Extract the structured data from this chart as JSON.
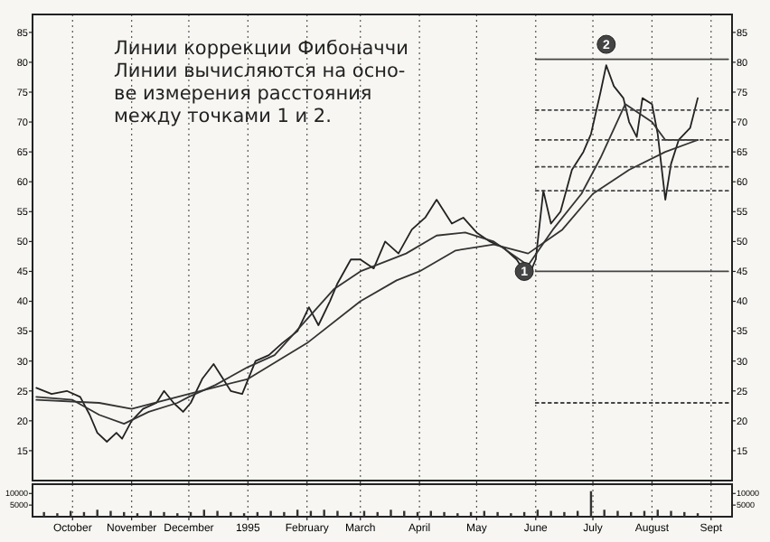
{
  "chart_data": [
    {
      "type": "line",
      "xlim": [
        "1994-09-10",
        "1995-09-12"
      ],
      "ylim": [
        10,
        88
      ],
      "xticks": [
        {
          "value": "1994-10-01",
          "label": null
        },
        {
          "value": "1994-11-01",
          "label": null
        },
        {
          "value": "1994-12-01",
          "label": null
        },
        {
          "value": "1995-01-01",
          "label": null
        },
        {
          "value": "1995-02-01",
          "label": null
        },
        {
          "value": "1995-03-01",
          "label": null
        },
        {
          "value": "1995-04-01",
          "label": null
        },
        {
          "value": "1995-05-01",
          "label": null
        },
        {
          "value": "1995-06-01",
          "label": null
        },
        {
          "value": "1995-07-01",
          "label": null
        },
        {
          "value": "1995-08-01",
          "label": null
        },
        {
          "value": "1995-09-01",
          "label": null
        }
      ],
      "yticks": [
        15,
        20,
        25,
        30,
        35,
        40,
        45,
        50,
        55,
        60,
        65,
        70,
        75,
        80,
        85
      ],
      "y2lim": [
        10,
        88
      ],
      "y2ticks": [
        15,
        20,
        25,
        30,
        35,
        40,
        45,
        50,
        55,
        60,
        65,
        70,
        75,
        80,
        85
      ],
      "tick_labels": "y",
      "grid": "x",
      "series": [
        {
          "color": "#222222",
          "line_style": "solid",
          "x": [
            "1994-09-12",
            "1994-09-20",
            "1994-09-28",
            "1994-10-05",
            "1994-10-10",
            "1994-10-14",
            "1994-10-19",
            "1994-10-24",
            "1994-10-27",
            "1994-11-01",
            "1994-11-07",
            "1994-11-14",
            "1994-11-18",
            "1994-11-23",
            "1994-11-28",
            "1994-12-02",
            "1994-12-08",
            "1994-12-14",
            "1994-12-19",
            "1994-12-23",
            "1994-12-29",
            "1995-01-05",
            "1995-01-12",
            "1995-01-19",
            "1995-01-27",
            "1995-02-02",
            "1995-02-07",
            "1995-02-13",
            "1995-02-17",
            "1995-02-24",
            "1995-03-01",
            "1995-03-08",
            "1995-03-14",
            "1995-03-21",
            "1995-03-28",
            "1995-04-04",
            "1995-04-10",
            "1995-04-18",
            "1995-04-24",
            "1995-05-01",
            "1995-05-08",
            "1995-05-15",
            "1995-05-22",
            "1995-05-28",
            "1995-06-01",
            "1995-06-05",
            "1995-06-09",
            "1995-06-14",
            "1995-06-20",
            "1995-06-26",
            "1995-06-30",
            "1995-07-05",
            "1995-07-08",
            "1995-07-12",
            "1995-07-17",
            "1995-07-20",
            "1995-07-24",
            "1995-07-27",
            "1995-08-01",
            "1995-08-04",
            "1995-08-08",
            "1995-08-11",
            "1995-08-15",
            "1995-08-21",
            "1995-08-25"
          ],
          "values": [
            25.5,
            24.5,
            25,
            24,
            21,
            18,
            16.5,
            18,
            17,
            20,
            22,
            23,
            25,
            23,
            21.5,
            23,
            27,
            29.5,
            27,
            25,
            24.5,
            30,
            31,
            33,
            35,
            39,
            36,
            40,
            43,
            47,
            47,
            45.5,
            50,
            48,
            52,
            54,
            57,
            53,
            54,
            51.5,
            50,
            49,
            47,
            44,
            47,
            58.5,
            53,
            55,
            62,
            65,
            68,
            75,
            79.5,
            76,
            74,
            70,
            67.5,
            74,
            73,
            68,
            57,
            63,
            67,
            69,
            74
          ]
        },
        {
          "color": "#333333",
          "line_style": "solid",
          "x": [
            "1994-09-12",
            "1994-10-01",
            "1994-10-15",
            "1994-10-28",
            "1994-11-10",
            "1994-11-25",
            "1994-12-01",
            "1994-12-15",
            "1995-01-01",
            "1995-01-15",
            "1995-02-01",
            "1995-02-15",
            "1995-03-01",
            "1995-03-25",
            "1995-04-10",
            "1995-04-25",
            "1995-05-10",
            "1995-05-28",
            "1995-06-10",
            "1995-06-25",
            "1995-07-05",
            "1995-07-18",
            "1995-08-01",
            "1995-08-08",
            "1995-08-25"
          ],
          "values": [
            24,
            23.5,
            21,
            19.5,
            21.5,
            23,
            24,
            26,
            29,
            31,
            37,
            42,
            45,
            48,
            51,
            51.5,
            50,
            46,
            52,
            58,
            64,
            73,
            70,
            67,
            67
          ]
        },
        {
          "color": "#333333",
          "line_style": "solid",
          "x": [
            "1994-09-12",
            "1994-10-15",
            "1994-11-01",
            "1994-12-01",
            "1995-01-01",
            "1995-02-01",
            "1995-03-01",
            "1995-03-20",
            "1995-04-01",
            "1995-04-20",
            "1995-05-10",
            "1995-05-28",
            "1995-06-15",
            "1995-07-01",
            "1995-07-20",
            "1995-08-08",
            "1995-08-25"
          ],
          "values": [
            23.5,
            23,
            22,
            24.5,
            27,
            33,
            40,
            43.5,
            45,
            48.5,
            49.5,
            48,
            52,
            58,
            62,
            65,
            67
          ]
        },
        {
          "color": "#444444",
          "line_style": "solid",
          "x": [
            "1995-06-01",
            "1995-09-10"
          ],
          "values": [
            80.5,
            80.5
          ]
        },
        {
          "color": "#444444",
          "line_style": "dotted",
          "x": [
            "1995-06-01",
            "1995-09-10"
          ],
          "values": [
            72,
            72
          ]
        },
        {
          "color": "#444444",
          "line_style": "dotted",
          "x": [
            "1995-06-01",
            "1995-09-10"
          ],
          "values": [
            67,
            67
          ]
        },
        {
          "color": "#444444",
          "line_style": "dotted",
          "x": [
            "1995-06-01",
            "1995-09-10"
          ],
          "values": [
            62.5,
            62.5
          ]
        },
        {
          "color": "#444444",
          "line_style": "dotted",
          "x": [
            "1995-06-01",
            "1995-09-10"
          ],
          "values": [
            58.5,
            58.5
          ]
        },
        {
          "color": "#444444",
          "line_style": "solid",
          "x": [
            "1995-06-01",
            "1995-09-10"
          ],
          "values": [
            45,
            45
          ]
        },
        {
          "color": "#444444",
          "line_style": "dotted",
          "x": [
            "1995-06-01",
            "1995-09-10"
          ],
          "values": [
            23,
            23
          ]
        }
      ],
      "annotations": [
        "Линии коррекции Фибоначчи\nЛинии вычисляются на осно-\nве измерения расстояния\nмежду точками 1 и 2.",
        {
          "text": "1",
          "x": "1995-05-26",
          "y": 45
        },
        {
          "text": "2",
          "x": "1995-07-08",
          "y": 83
        }
      ]
    },
    {
      "type": "bar",
      "xlim": [
        "1994-09-10",
        "1995-09-12"
      ],
      "ylim": [
        0,
        14000
      ],
      "xticks": [
        {
          "value": "1994-10-01",
          "label": "October"
        },
        {
          "value": "1994-11-01",
          "label": "November"
        },
        {
          "value": "1994-12-01",
          "label": "December"
        },
        {
          "value": "1995-01-01",
          "label": "1995"
        },
        {
          "value": "1995-02-01",
          "label": "February"
        },
        {
          "value": "1995-03-01",
          "label": "March"
        },
        {
          "value": "1995-04-01",
          "label": "April"
        },
        {
          "value": "1995-05-01",
          "label": "May"
        },
        {
          "value": "1995-06-01",
          "label": "June"
        },
        {
          "value": "1995-07-01",
          "label": "July"
        },
        {
          "value": "1995-08-01",
          "label": "August"
        },
        {
          "value": "1995-09-01",
          "label": "Sept"
        }
      ],
      "yticks": [
        5000,
        10000
      ],
      "y2lim": [
        0,
        14000
      ],
      "y2ticks": [
        5000,
        10000
      ],
      "grid": "x",
      "color": "#333333",
      "x": [
        "1994-09-16",
        "1994-09-23",
        "1994-09-30",
        "1994-10-07",
        "1994-10-14",
        "1994-10-21",
        "1994-10-28",
        "1994-11-04",
        "1994-11-11",
        "1994-11-18",
        "1994-11-25",
        "1994-12-02",
        "1994-12-09",
        "1994-12-16",
        "1994-12-23",
        "1994-12-30",
        "1995-01-06",
        "1995-01-13",
        "1995-01-20",
        "1995-01-27",
        "1995-02-03",
        "1995-02-10",
        "1995-02-17",
        "1995-02-24",
        "1995-03-03",
        "1995-03-10",
        "1995-03-17",
        "1995-03-24",
        "1995-03-31",
        "1995-04-07",
        "1995-04-14",
        "1995-04-21",
        "1995-04-28",
        "1995-05-05",
        "1995-05-12",
        "1995-05-19",
        "1995-05-26",
        "1995-06-02",
        "1995-06-09",
        "1995-06-16",
        "1995-06-23",
        "1995-06-30",
        "1995-07-07",
        "1995-07-14",
        "1995-07-21",
        "1995-07-28",
        "1995-08-04",
        "1995-08-11",
        "1995-08-18",
        "1995-08-25"
      ],
      "values": [
        2000,
        1500,
        2500,
        2000,
        3000,
        2500,
        2000,
        1500,
        2500,
        2000,
        1500,
        2000,
        3000,
        2500,
        2000,
        1500,
        2000,
        2500,
        2000,
        3000,
        2500,
        3000,
        2500,
        2000,
        2500,
        2000,
        3000,
        2500,
        2000,
        2500,
        2000,
        1500,
        2000,
        2500,
        2000,
        1500,
        2000,
        3000,
        2500,
        2000,
        2500,
        11000,
        3000,
        2500,
        2000,
        2500,
        3000,
        2500,
        2000,
        1500
      ]
    }
  ]
}
